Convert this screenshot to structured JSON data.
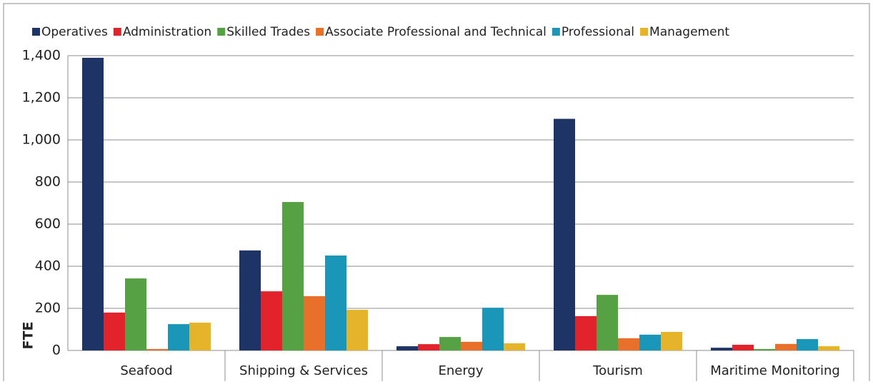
{
  "chart_data": {
    "type": "bar",
    "y_label": "FTE",
    "categories": [
      "Seafood",
      "Shipping & Services",
      "Energy",
      "Tourism",
      "Maritime Monitoring"
    ],
    "series": [
      {
        "name": "Operatives",
        "color": "#1f3466",
        "values": [
          1390,
          475,
          20,
          1100,
          13
        ]
      },
      {
        "name": "Administration",
        "color": "#e3232c",
        "values": [
          180,
          281,
          30,
          163,
          27
        ]
      },
      {
        "name": "Skilled Trades",
        "color": "#55a144",
        "values": [
          342,
          705,
          64,
          264,
          7
        ]
      },
      {
        "name": "Associate Professional and Technical",
        "color": "#e8702a",
        "values": [
          7,
          258,
          41,
          58,
          31
        ]
      },
      {
        "name": "Professional",
        "color": "#1a96b8",
        "values": [
          125,
          451,
          203,
          75,
          54
        ]
      },
      {
        "name": "Management",
        "color": "#e6b42a",
        "values": [
          132,
          193,
          34,
          88,
          20
        ]
      }
    ],
    "ylim": [
      0,
      1400
    ],
    "yticks": [
      0,
      200,
      400,
      600,
      800,
      {
        "value": 1000,
        "label": "1,000"
      },
      {
        "value": 1200,
        "label": "1,200"
      },
      {
        "value": 1400,
        "label": "1,400"
      }
    ],
    "grid": true,
    "legend": "top"
  }
}
